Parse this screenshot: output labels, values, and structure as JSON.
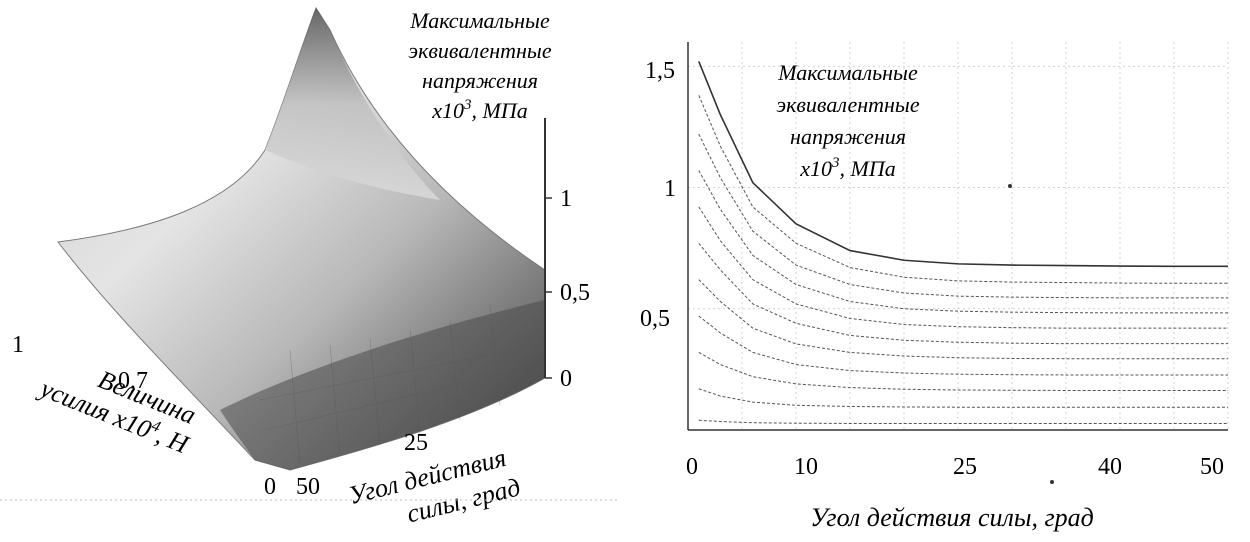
{
  "chart_data": [
    {
      "type": "surface",
      "title_lines": [
        "Максимальные",
        "эквивалентные",
        "напряжения",
        "x10",
        "3",
        ", МПа"
      ],
      "z_ticks": [
        "0",
        "0,5",
        "1"
      ],
      "angle_label_lines": [
        "Угол действия",
        "силы, град"
      ],
      "angle_ticks": [
        "50",
        "25"
      ],
      "force_label_lines": [
        "Величина",
        "усилия x10",
        "4",
        ", H"
      ],
      "force_ticks": [
        "0",
        "0,7",
        "1"
      ],
      "colors": {
        "surface_light": "#e2e2e2",
        "surface_dark": "#3a3a3a"
      }
    },
    {
      "type": "line",
      "title_lines": [
        "Максимальные",
        "эквивалентные",
        "напряжения",
        "x10",
        "3",
        ", МПа"
      ],
      "xlabel": "Угол действия силы, град",
      "x_ticks": [
        "0",
        "10",
        "25",
        "40",
        "50"
      ],
      "y_ticks": [
        "1,5",
        "1",
        "0,5"
      ],
      "xlim": [
        0,
        50
      ],
      "ylim": [
        0,
        1.6
      ],
      "grid": true,
      "legend_position": "top-right",
      "x": [
        1,
        3,
        6,
        10,
        15,
        20,
        25,
        30,
        35,
        40,
        45,
        50
      ],
      "series": [
        {
          "values": [
            1.52,
            1.3,
            1.02,
            0.85,
            0.74,
            0.7,
            0.685,
            0.68,
            0.678,
            0.676,
            0.675,
            0.675
          ]
        },
        {
          "values": [
            1.38,
            1.17,
            0.92,
            0.77,
            0.67,
            0.63,
            0.615,
            0.61,
            0.608,
            0.606,
            0.605,
            0.605
          ]
        },
        {
          "values": [
            1.22,
            1.04,
            0.82,
            0.68,
            0.6,
            0.565,
            0.552,
            0.548,
            0.546,
            0.545,
            0.545,
            0.545
          ]
        },
        {
          "values": [
            1.07,
            0.91,
            0.72,
            0.6,
            0.53,
            0.5,
            0.49,
            0.486,
            0.484,
            0.483,
            0.483,
            0.483
          ]
        },
        {
          "values": [
            0.92,
            0.78,
            0.62,
            0.52,
            0.46,
            0.435,
            0.426,
            0.422,
            0.42,
            0.42,
            0.42,
            0.42
          ]
        },
        {
          "values": [
            0.77,
            0.66,
            0.52,
            0.44,
            0.39,
            0.37,
            0.362,
            0.358,
            0.356,
            0.356,
            0.356,
            0.356
          ]
        },
        {
          "values": [
            0.62,
            0.53,
            0.42,
            0.355,
            0.32,
            0.305,
            0.298,
            0.295,
            0.294,
            0.294,
            0.294,
            0.294
          ]
        },
        {
          "values": [
            0.47,
            0.4,
            0.32,
            0.27,
            0.245,
            0.235,
            0.23,
            0.228,
            0.227,
            0.227,
            0.227,
            0.227
          ]
        },
        {
          "values": [
            0.32,
            0.27,
            0.22,
            0.19,
            0.175,
            0.168,
            0.165,
            0.164,
            0.163,
            0.163,
            0.163,
            0.163
          ]
        },
        {
          "values": [
            0.17,
            0.14,
            0.115,
            0.102,
            0.097,
            0.095,
            0.094,
            0.094,
            0.094,
            0.094,
            0.094,
            0.094
          ]
        },
        {
          "values": [
            0.04,
            0.035,
            0.03,
            0.028,
            0.027,
            0.027,
            0.027,
            0.027,
            0.027,
            0.027,
            0.027,
            0.027
          ]
        }
      ],
      "colors": {
        "axis": "#333333",
        "grid": "#c8c8c8",
        "line": "#555555"
      }
    }
  ]
}
